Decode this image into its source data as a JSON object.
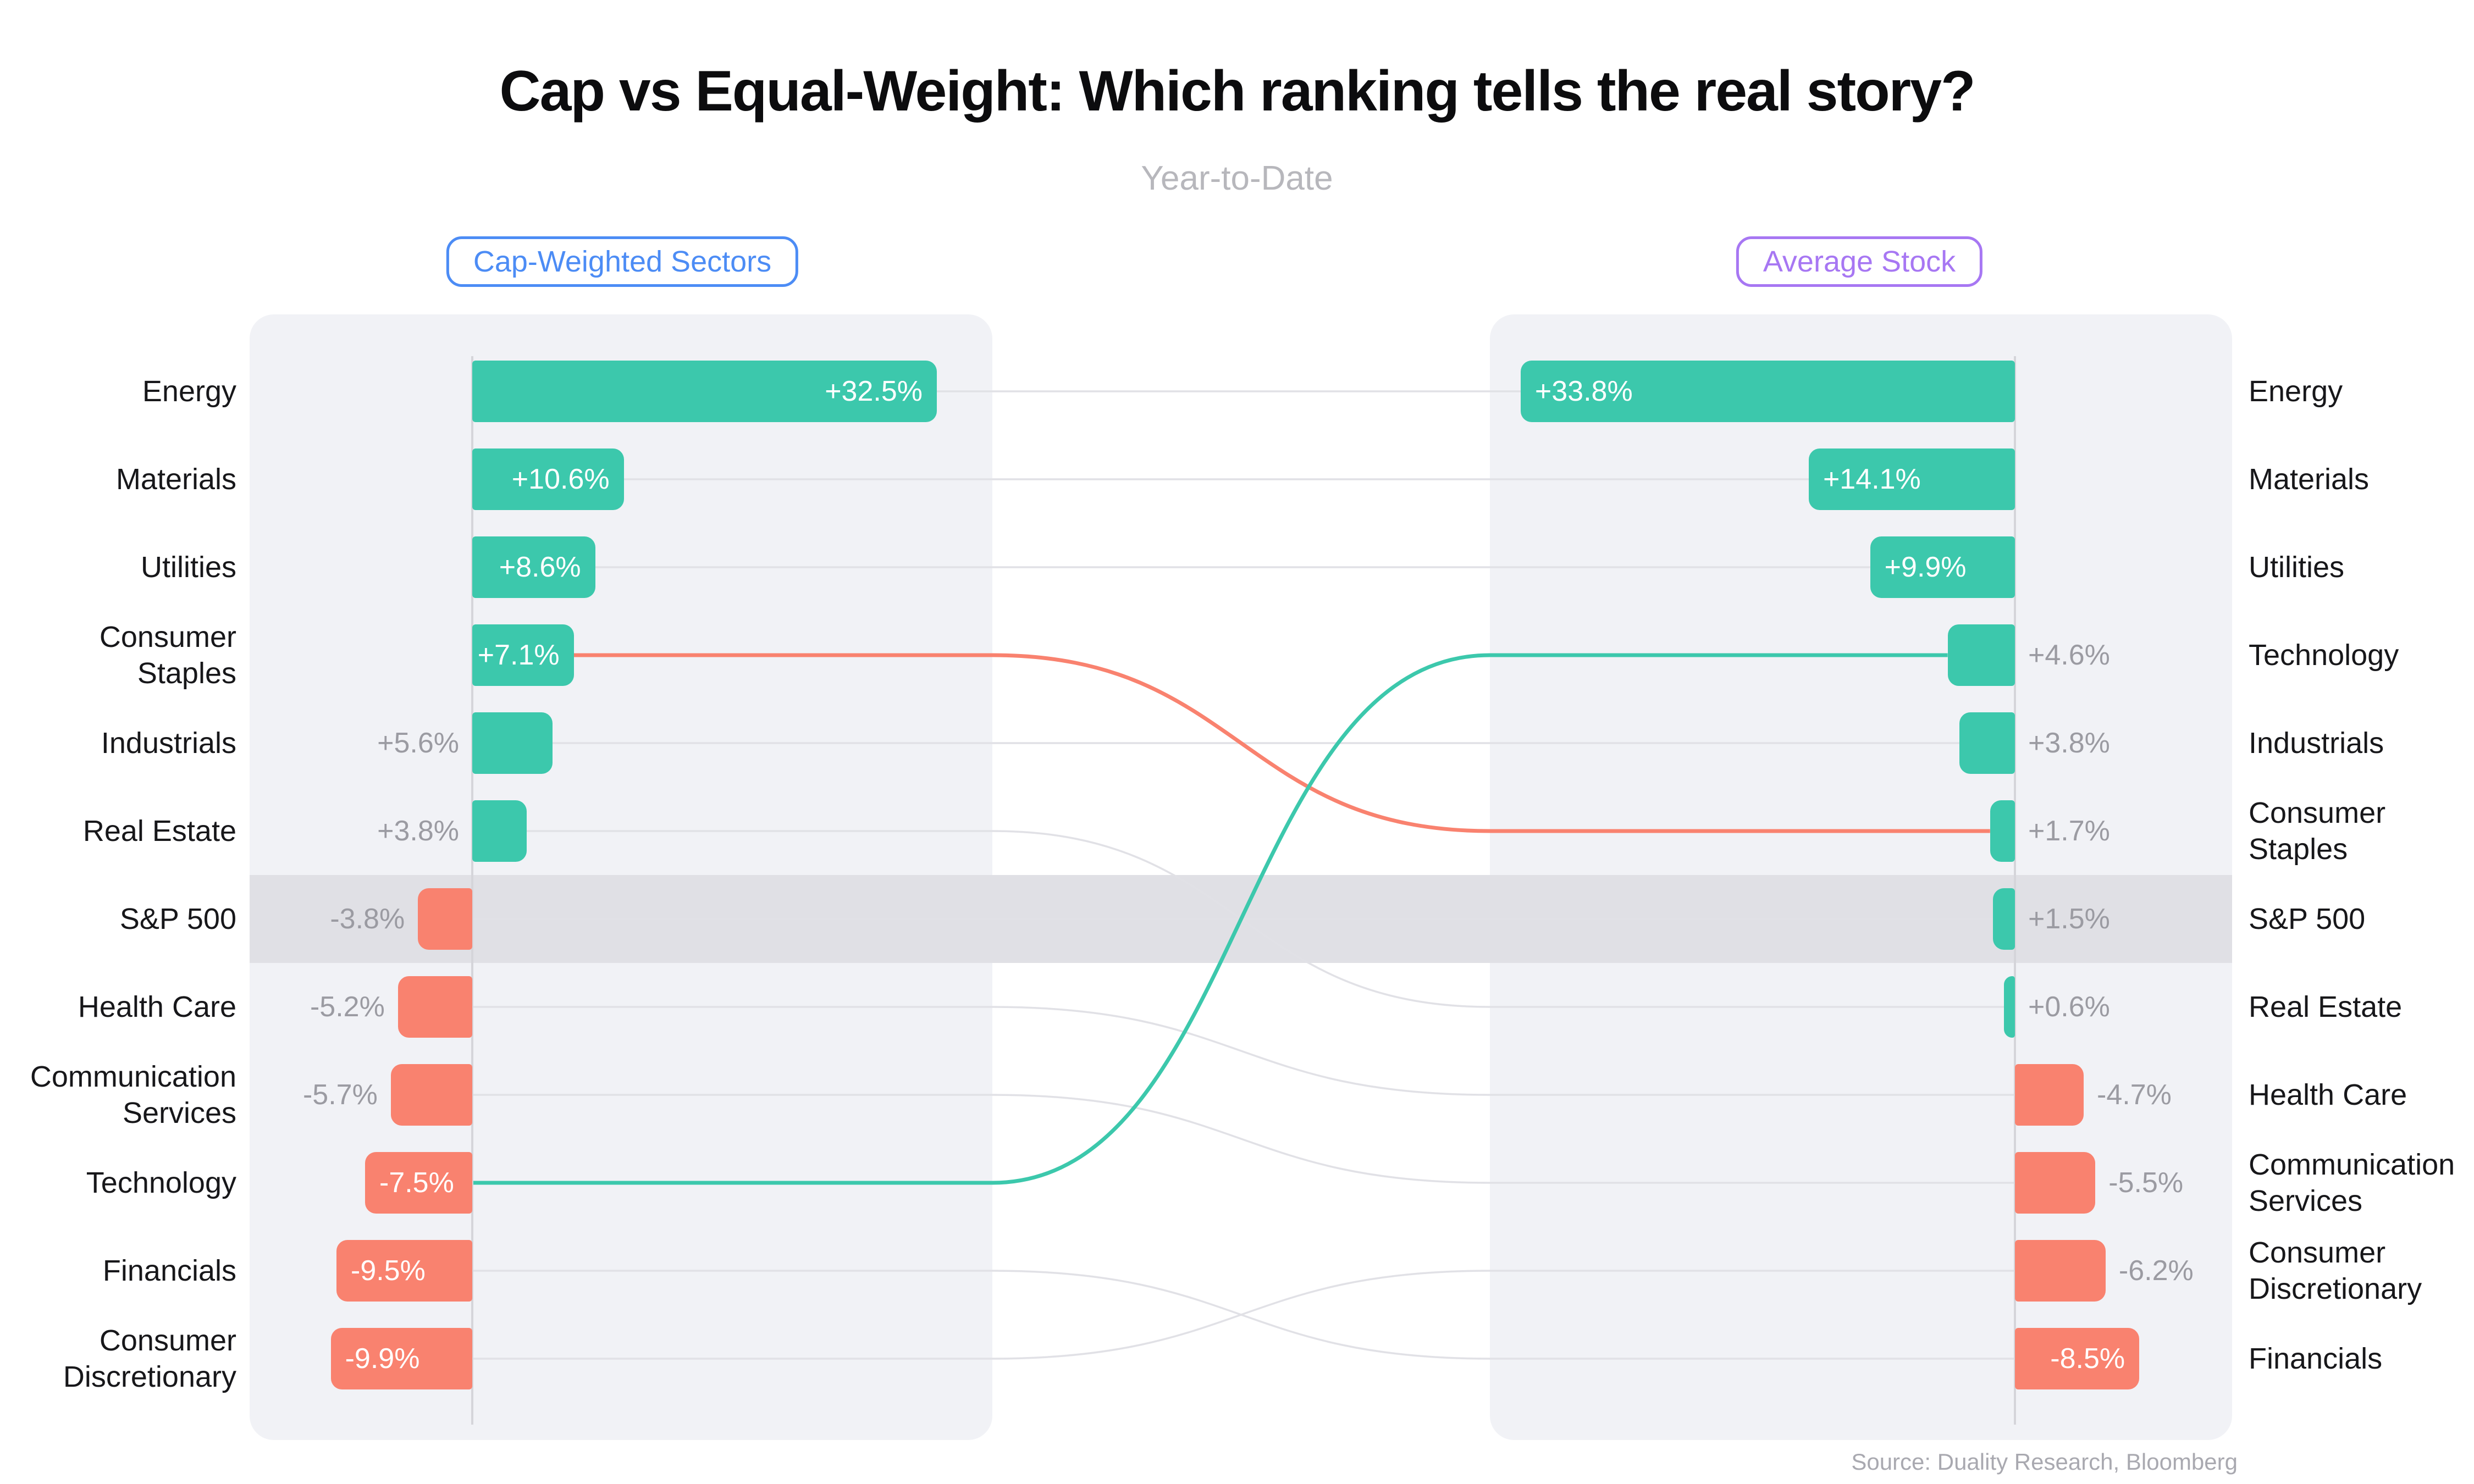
{
  "header": {
    "title": "Cap vs Equal-Weight: Which ranking tells the real story?",
    "subtitle": "Year-to-Date"
  },
  "badges": {
    "left": "Cap-Weighted Sectors",
    "right": "Average Stock"
  },
  "source": "Source: Duality Research, Bloomberg",
  "colors": {
    "positive_bar": "#3cc8ac",
    "negative_bar": "#f9826f",
    "panel_bg": "#f1f2f6",
    "highlight_band": "#e0e0e5",
    "default_link": "#e1e1e6",
    "teal_link": "#3cc8ac",
    "salmon_link": "#f9826f",
    "badge_left_accent": "#4c8cf5",
    "badge_right_accent": "#a777f3",
    "gray_value_text": "#9b9ba2",
    "inside_value_text": "#ffffff"
  },
  "chart_data": {
    "type": "bar",
    "orientation": "horizontal-mirrored-bump",
    "title": "Cap vs Equal-Weight: Which ranking tells the real story?",
    "subtitle": "Year-to-Date",
    "unit": "%",
    "source": "Source: Duality Research, Bloomberg",
    "highlight_band_row": "S&P 500",
    "highlighted_links": [
      {
        "sector": "Technology",
        "color": "#3cc8ac"
      },
      {
        "sector": "Consumer Staples",
        "color": "#f9826f"
      }
    ],
    "series": [
      {
        "name": "Cap-Weighted Sectors",
        "rows": [
          {
            "sector": "Energy",
            "label_lines": [
              "Energy"
            ],
            "value": 32.5,
            "value_label": "+32.5%"
          },
          {
            "sector": "Materials",
            "label_lines": [
              "Materials"
            ],
            "value": 10.6,
            "value_label": "+10.6%"
          },
          {
            "sector": "Utilities",
            "label_lines": [
              "Utilities"
            ],
            "value": 8.6,
            "value_label": "+8.6%"
          },
          {
            "sector": "Consumer Staples",
            "label_lines": [
              "Consumer",
              "Staples"
            ],
            "value": 7.1,
            "value_label": "+7.1%"
          },
          {
            "sector": "Industrials",
            "label_lines": [
              "Industrials"
            ],
            "value": 5.6,
            "value_label": "+5.6%"
          },
          {
            "sector": "Real Estate",
            "label_lines": [
              "Real Estate"
            ],
            "value": 3.8,
            "value_label": "+3.8%"
          },
          {
            "sector": "S&P 500",
            "label_lines": [
              "S&P 500"
            ],
            "value": -3.8,
            "value_label": "-3.8%"
          },
          {
            "sector": "Health Care",
            "label_lines": [
              "Health Care"
            ],
            "value": -5.2,
            "value_label": "-5.2%"
          },
          {
            "sector": "Communication Services",
            "label_lines": [
              "Communication",
              "Services"
            ],
            "value": -5.7,
            "value_label": "-5.7%"
          },
          {
            "sector": "Technology",
            "label_lines": [
              "Technology"
            ],
            "value": -7.5,
            "value_label": "-7.5%"
          },
          {
            "sector": "Financials",
            "label_lines": [
              "Financials"
            ],
            "value": -9.5,
            "value_label": "-9.5%"
          },
          {
            "sector": "Consumer Discretionary",
            "label_lines": [
              "Consumer",
              "Discretionary"
            ],
            "value": -9.9,
            "value_label": "-9.9%"
          }
        ]
      },
      {
        "name": "Average Stock",
        "rows": [
          {
            "sector": "Energy",
            "label_lines": [
              "Energy"
            ],
            "value": 33.8,
            "value_label": "+33.8%"
          },
          {
            "sector": "Materials",
            "label_lines": [
              "Materials"
            ],
            "value": 14.1,
            "value_label": "+14.1%"
          },
          {
            "sector": "Utilities",
            "label_lines": [
              "Utilities"
            ],
            "value": 9.9,
            "value_label": "+9.9%"
          },
          {
            "sector": "Technology",
            "label_lines": [
              "Technology"
            ],
            "value": 4.6,
            "value_label": "+4.6%"
          },
          {
            "sector": "Industrials",
            "label_lines": [
              "Industrials"
            ],
            "value": 3.8,
            "value_label": "+3.8%"
          },
          {
            "sector": "Consumer Staples",
            "label_lines": [
              "Consumer",
              "Staples"
            ],
            "value": 1.7,
            "value_label": "+1.7%"
          },
          {
            "sector": "S&P 500",
            "label_lines": [
              "S&P 500"
            ],
            "value": 1.5,
            "value_label": "+1.5%"
          },
          {
            "sector": "Real Estate",
            "label_lines": [
              "Real Estate"
            ],
            "value": 0.6,
            "value_label": "+0.6%"
          },
          {
            "sector": "Health Care",
            "label_lines": [
              "Health Care"
            ],
            "value": -4.7,
            "value_label": "-4.7%"
          },
          {
            "sector": "Communication Services",
            "label_lines": [
              "Communication",
              "Services"
            ],
            "value": -5.5,
            "value_label": "-5.5%"
          },
          {
            "sector": "Consumer Discretionary",
            "label_lines": [
              "Consumer",
              "Discretionary"
            ],
            "value": -6.2,
            "value_label": "-6.2%"
          },
          {
            "sector": "Financials",
            "label_lines": [
              "Financials"
            ],
            "value": -8.5,
            "value_label": "-8.5%"
          }
        ]
      }
    ]
  }
}
